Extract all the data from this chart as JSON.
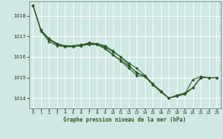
{
  "xlabel": "Graphe pression niveau de la mer (hPa)",
  "xlim": [
    -0.5,
    23.5
  ],
  "ylim": [
    1013.5,
    1018.7
  ],
  "yticks": [
    1014,
    1015,
    1016,
    1017,
    1018
  ],
  "xticks": [
    0,
    1,
    2,
    3,
    4,
    5,
    6,
    7,
    8,
    9,
    10,
    11,
    12,
    13,
    14,
    15,
    16,
    17,
    18,
    19,
    20,
    21,
    22,
    23
  ],
  "bg_color": "#cfe8e4",
  "grid_color": "#ffffff",
  "line_color": "#2d5a27",
  "marker_color": "#2d5a27",
  "series": [
    [
      1018.5,
      1017.3,
      1016.85,
      1016.65,
      1016.55,
      1016.55,
      1016.6,
      1016.65,
      1016.6,
      1016.45,
      1016.1,
      1015.8,
      1015.45,
      1015.1,
      1015.05,
      1014.65,
      1014.3,
      1014.0,
      1014.1,
      1014.2,
      1014.5,
      1015.0,
      1015.0,
      1015.0
    ],
    [
      1018.5,
      1017.25,
      1016.75,
      1016.55,
      1016.5,
      1016.5,
      1016.55,
      1016.7,
      1016.65,
      1016.5,
      1016.25,
      1016.0,
      1015.7,
      1015.45,
      1015.1,
      1014.7,
      1014.35,
      1014.0,
      1014.1,
      1014.2,
      1014.9,
      1015.05,
      1015.0,
      1015.0
    ],
    [
      1018.5,
      1017.3,
      1016.9,
      1016.65,
      1016.5,
      1016.5,
      1016.55,
      1016.65,
      1016.65,
      1016.55,
      1016.3,
      1016.0,
      1015.6,
      1015.2,
      1015.1,
      1014.65,
      1014.3,
      1014.0,
      1014.15,
      1014.25,
      1014.5,
      1015.0,
      1015.0,
      1015.0
    ],
    [
      1018.5,
      1017.3,
      1016.85,
      1016.6,
      1016.5,
      1016.5,
      1016.55,
      1016.6,
      1016.6,
      1016.4,
      1016.1,
      1015.85,
      1015.55,
      1015.25,
      1015.05,
      1014.65,
      1014.35,
      1014.0,
      1014.1,
      1014.2,
      1014.5,
      1015.0,
      1015.0,
      1015.0
    ]
  ]
}
